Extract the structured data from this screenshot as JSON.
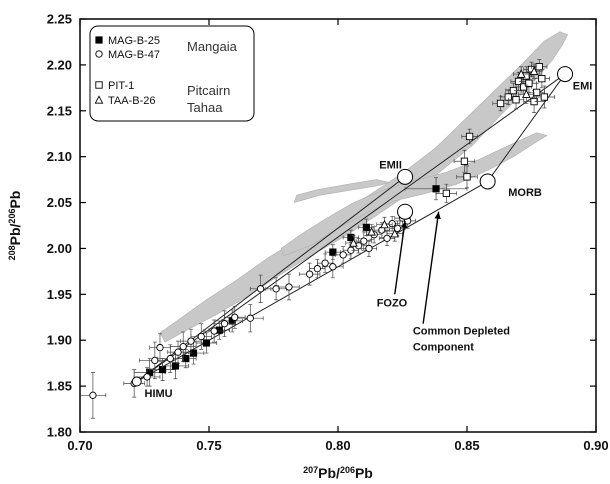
{
  "chart_data": {
    "type": "scatter",
    "title": "",
    "xlabel": {
      "sup": "207",
      "main": "Pb/",
      "sup2": "206",
      "main2": "Pb"
    },
    "ylabel": {
      "sup": "208",
      "main": "Pb/",
      "sup2": "206",
      "main2": "Pb"
    },
    "xlim": [
      0.7,
      0.9
    ],
    "ylim": [
      1.8,
      2.25
    ],
    "xticks": [
      "0.70",
      "0.75",
      "0.80",
      "0.85",
      "0.90"
    ],
    "yticks": [
      "1.80",
      "1.85",
      "1.90",
      "1.95",
      "2.00",
      "2.05",
      "2.10",
      "2.15",
      "2.20",
      "2.25"
    ],
    "legend": {
      "placement": "top-left",
      "entries": [
        {
          "marker": "filled-square",
          "label": "MAG-B-25"
        },
        {
          "marker": "open-circle",
          "label": "MAG-B-47"
        },
        {
          "marker": "open-square",
          "label": "PIT-1"
        },
        {
          "marker": "open-triangle",
          "label": "TAA-B-26"
        }
      ],
      "groups": [
        "Mangaia",
        "Pitcairn",
        "Tahaa"
      ]
    },
    "endmembers": [
      {
        "label": "HIMU",
        "x": 0.722,
        "y": 1.855
      },
      {
        "label": "EMI",
        "x": 0.888,
        "y": 2.19
      },
      {
        "label": "EMII",
        "x": 0.826,
        "y": 2.078
      },
      {
        "label": "MORB",
        "x": 0.858,
        "y": 2.073
      },
      {
        "label": "FOZO",
        "x": 0.826,
        "y": 2.04
      },
      {
        "label": "Common Depleted Component",
        "x": 0.84,
        "y": 2.065
      }
    ],
    "annotations": [
      {
        "text": "HIMU",
        "x": 0.725,
        "y": 1.838
      },
      {
        "text": "EMI",
        "x": 0.891,
        "y": 2.173
      },
      {
        "text": "EMII",
        "x": 0.816,
        "y": 2.087
      },
      {
        "text": "MORB",
        "x": 0.866,
        "y": 2.057
      },
      {
        "text": "FOZO",
        "x": 0.815,
        "y": 1.937
      },
      {
        "text": "Common Depleted",
        "x": 0.829,
        "y": 1.906
      },
      {
        "text": "Component",
        "x": 0.829,
        "y": 1.889
      }
    ],
    "arrows": [
      {
        "from": [
          0.822,
          1.95
        ],
        "to": [
          0.826,
          2.03
        ]
      },
      {
        "from": [
          0.833,
          1.918
        ],
        "to": [
          0.839,
          2.04
        ]
      }
    ],
    "mixing_lines": [
      {
        "from": "HIMU",
        "to": "EMI"
      },
      {
        "from": "HIMU",
        "to": "EMII"
      },
      {
        "from": "HIMU",
        "to": "MORB"
      },
      {
        "from": "MORB",
        "to": "EMI"
      }
    ],
    "field_color": "#c8c8c8",
    "fields": [
      [
        [
          0.733,
          1.898
        ],
        [
          0.742,
          1.912
        ],
        [
          0.753,
          1.928
        ],
        [
          0.765,
          1.948
        ],
        [
          0.778,
          1.972
        ],
        [
          0.79,
          1.993
        ],
        [
          0.802,
          2.012
        ],
        [
          0.815,
          2.036
        ],
        [
          0.826,
          2.057
        ],
        [
          0.838,
          2.08
        ],
        [
          0.852,
          2.112
        ],
        [
          0.864,
          2.148
        ],
        [
          0.876,
          2.182
        ],
        [
          0.883,
          2.205
        ],
        [
          0.887,
          2.222
        ],
        [
          0.889,
          2.233
        ],
        [
          0.886,
          2.236
        ],
        [
          0.88,
          2.226
        ],
        [
          0.871,
          2.2
        ],
        [
          0.86,
          2.17
        ],
        [
          0.849,
          2.14
        ],
        [
          0.838,
          2.11
        ],
        [
          0.825,
          2.082
        ],
        [
          0.812,
          2.058
        ],
        [
          0.798,
          2.035
        ],
        [
          0.786,
          2.012
        ],
        [
          0.773,
          1.99
        ],
        [
          0.761,
          1.966
        ],
        [
          0.749,
          1.944
        ],
        [
          0.739,
          1.924
        ],
        [
          0.731,
          1.908
        ]
      ],
      [
        [
          0.779,
          1.992
        ],
        [
          0.79,
          2.004
        ],
        [
          0.8,
          2.022
        ],
        [
          0.812,
          2.04
        ],
        [
          0.822,
          2.052
        ],
        [
          0.834,
          2.06
        ],
        [
          0.846,
          2.07
        ],
        [
          0.858,
          2.085
        ],
        [
          0.868,
          2.1
        ],
        [
          0.878,
          2.118
        ],
        [
          0.881,
          2.123
        ],
        [
          0.877,
          2.126
        ],
        [
          0.866,
          2.112
        ],
        [
          0.854,
          2.096
        ],
        [
          0.842,
          2.083
        ],
        [
          0.83,
          2.074
        ],
        [
          0.818,
          2.064
        ],
        [
          0.806,
          2.05
        ],
        [
          0.795,
          2.032
        ],
        [
          0.786,
          2.016
        ],
        [
          0.778,
          2.0
        ]
      ],
      [
        [
          0.783,
          2.05
        ],
        [
          0.793,
          2.058
        ],
        [
          0.806,
          2.064
        ],
        [
          0.815,
          2.068
        ],
        [
          0.82,
          2.072
        ],
        [
          0.815,
          2.075
        ],
        [
          0.804,
          2.07
        ],
        [
          0.792,
          2.064
        ],
        [
          0.784,
          2.058
        ]
      ]
    ],
    "series": [
      {
        "name": "MAG-B-25",
        "marker": "filled-square",
        "points": [
          {
            "x": 0.727,
            "y": 1.865,
            "xe": 0.006,
            "ye": 0.015
          },
          {
            "x": 0.732,
            "y": 1.868,
            "xe": 0.005,
            "ye": 0.012
          },
          {
            "x": 0.737,
            "y": 1.872,
            "xe": 0.005,
            "ye": 0.014
          },
          {
            "x": 0.741,
            "y": 1.88,
            "xe": 0.004,
            "ye": 0.01
          },
          {
            "x": 0.744,
            "y": 1.886,
            "xe": 0.004,
            "ye": 0.012
          },
          {
            "x": 0.749,
            "y": 1.897,
            "xe": 0.004,
            "ye": 0.011
          },
          {
            "x": 0.754,
            "y": 1.911,
            "xe": 0.004,
            "ye": 0.01
          },
          {
            "x": 0.759,
            "y": 1.921,
            "xe": 0.004,
            "ye": 0.012
          },
          {
            "x": 0.798,
            "y": 1.996,
            "xe": 0.003,
            "ye": 0.008
          },
          {
            "x": 0.805,
            "y": 2.012,
            "xe": 0.003,
            "ye": 0.008
          },
          {
            "x": 0.811,
            "y": 2.023,
            "xe": 0.003,
            "ye": 0.009
          },
          {
            "x": 0.838,
            "y": 2.065,
            "xe": 0.012,
            "ye": 0.012
          }
        ]
      },
      {
        "name": "MAG-B-47",
        "marker": "open-circle",
        "points": [
          {
            "x": 0.705,
            "y": 1.84,
            "xe": 0.005,
            "ye": 0.025
          },
          {
            "x": 0.721,
            "y": 1.853,
            "xe": 0.004,
            "ye": 0.015
          },
          {
            "x": 0.726,
            "y": 1.86,
            "xe": 0.005,
            "ye": 0.01
          },
          {
            "x": 0.729,
            "y": 1.878,
            "xe": 0.006,
            "ye": 0.02
          },
          {
            "x": 0.731,
            "y": 1.892,
            "xe": 0.004,
            "ye": 0.015
          },
          {
            "x": 0.735,
            "y": 1.88,
            "xe": 0.005,
            "ye": 0.015
          },
          {
            "x": 0.738,
            "y": 1.887,
            "xe": 0.004,
            "ye": 0.012
          },
          {
            "x": 0.74,
            "y": 1.893,
            "xe": 0.005,
            "ye": 0.016
          },
          {
            "x": 0.743,
            "y": 1.899,
            "xe": 0.004,
            "ye": 0.013
          },
          {
            "x": 0.747,
            "y": 1.904,
            "xe": 0.004,
            "ye": 0.014
          },
          {
            "x": 0.752,
            "y": 1.91,
            "xe": 0.004,
            "ye": 0.012
          },
          {
            "x": 0.756,
            "y": 1.918,
            "xe": 0.004,
            "ye": 0.014
          },
          {
            "x": 0.76,
            "y": 1.925,
            "xe": 0.004,
            "ye": 0.012
          },
          {
            "x": 0.766,
            "y": 1.924,
            "xe": 0.005,
            "ye": 0.015
          },
          {
            "x": 0.77,
            "y": 1.956,
            "xe": 0.004,
            "ye": 0.015
          },
          {
            "x": 0.776,
            "y": 1.956,
            "xe": 0.004,
            "ye": 0.012
          },
          {
            "x": 0.781,
            "y": 1.958,
            "xe": 0.004,
            "ye": 0.014
          },
          {
            "x": 0.789,
            "y": 1.972,
            "xe": 0.004,
            "ye": 0.012
          },
          {
            "x": 0.792,
            "y": 1.978,
            "xe": 0.003,
            "ye": 0.01
          },
          {
            "x": 0.795,
            "y": 1.984,
            "xe": 0.003,
            "ye": 0.01
          },
          {
            "x": 0.798,
            "y": 1.98,
            "xe": 0.004,
            "ye": 0.012
          },
          {
            "x": 0.802,
            "y": 1.993,
            "xe": 0.003,
            "ye": 0.009
          },
          {
            "x": 0.805,
            "y": 1.998,
            "xe": 0.003,
            "ye": 0.009
          },
          {
            "x": 0.808,
            "y": 2.003,
            "xe": 0.003,
            "ye": 0.008
          },
          {
            "x": 0.81,
            "y": 2.008,
            "xe": 0.003,
            "ye": 0.01
          },
          {
            "x": 0.812,
            "y": 2.0,
            "xe": 0.003,
            "ye": 0.009
          },
          {
            "x": 0.814,
            "y": 2.015,
            "xe": 0.003,
            "ye": 0.009
          },
          {
            "x": 0.817,
            "y": 2.02,
            "xe": 0.003,
            "ye": 0.008
          },
          {
            "x": 0.819,
            "y": 2.011,
            "xe": 0.003,
            "ye": 0.008
          },
          {
            "x": 0.821,
            "y": 2.027,
            "xe": 0.003,
            "ye": 0.008
          },
          {
            "x": 0.823,
            "y": 2.022,
            "xe": 0.003,
            "ye": 0.008
          },
          {
            "x": 0.825,
            "y": 2.033,
            "xe": 0.003,
            "ye": 0.008
          },
          {
            "x": 0.827,
            "y": 2.03,
            "xe": 0.003,
            "ye": 0.008
          }
        ]
      },
      {
        "name": "PIT-1",
        "marker": "open-square",
        "points": [
          {
            "x": 0.851,
            "y": 2.122,
            "xe": 0.003,
            "ye": 0.008
          },
          {
            "x": 0.849,
            "y": 2.095,
            "xe": 0.004,
            "ye": 0.012
          },
          {
            "x": 0.85,
            "y": 2.078,
            "xe": 0.004,
            "ye": 0.012
          },
          {
            "x": 0.842,
            "y": 2.06,
            "xe": 0.004,
            "ye": 0.01
          },
          {
            "x": 0.863,
            "y": 2.158,
            "xe": 0.003,
            "ye": 0.008
          },
          {
            "x": 0.866,
            "y": 2.165,
            "xe": 0.003,
            "ye": 0.008
          },
          {
            "x": 0.868,
            "y": 2.172,
            "xe": 0.003,
            "ye": 0.008
          },
          {
            "x": 0.87,
            "y": 2.182,
            "xe": 0.003,
            "ye": 0.01
          },
          {
            "x": 0.872,
            "y": 2.176,
            "xe": 0.003,
            "ye": 0.008
          },
          {
            "x": 0.873,
            "y": 2.188,
            "xe": 0.003,
            "ye": 0.01
          },
          {
            "x": 0.875,
            "y": 2.195,
            "xe": 0.003,
            "ye": 0.008
          },
          {
            "x": 0.876,
            "y": 2.16,
            "xe": 0.004,
            "ye": 0.012
          },
          {
            "x": 0.877,
            "y": 2.17,
            "xe": 0.003,
            "ye": 0.01
          },
          {
            "x": 0.878,
            "y": 2.198,
            "xe": 0.003,
            "ye": 0.008
          },
          {
            "x": 0.879,
            "y": 2.185,
            "xe": 0.003,
            "ye": 0.01
          },
          {
            "x": 0.88,
            "y": 2.165,
            "xe": 0.004,
            "ye": 0.012
          },
          {
            "x": 0.869,
            "y": 2.162,
            "xe": 0.003,
            "ye": 0.01
          },
          {
            "x": 0.874,
            "y": 2.18,
            "xe": 0.003,
            "ye": 0.01
          }
        ]
      },
      {
        "name": "TAA-B-26",
        "marker": "open-triangle",
        "points": [
          {
            "x": 0.871,
            "y": 2.19,
            "xe": 0.003,
            "ye": 0.008
          },
          {
            "x": 0.873,
            "y": 2.168,
            "xe": 0.003,
            "ye": 0.01
          },
          {
            "x": 0.876,
            "y": 2.193,
            "xe": 0.003,
            "ye": 0.008
          },
          {
            "x": 0.806,
            "y": 2.006,
            "xe": 0.003,
            "ye": 0.008
          },
          {
            "x": 0.813,
            "y": 2.018,
            "xe": 0.003,
            "ye": 0.008
          },
          {
            "x": 0.818,
            "y": 2.026,
            "xe": 0.003,
            "ye": 0.008
          },
          {
            "x": 0.822,
            "y": 2.016,
            "xe": 0.003,
            "ye": 0.008
          }
        ]
      }
    ]
  }
}
